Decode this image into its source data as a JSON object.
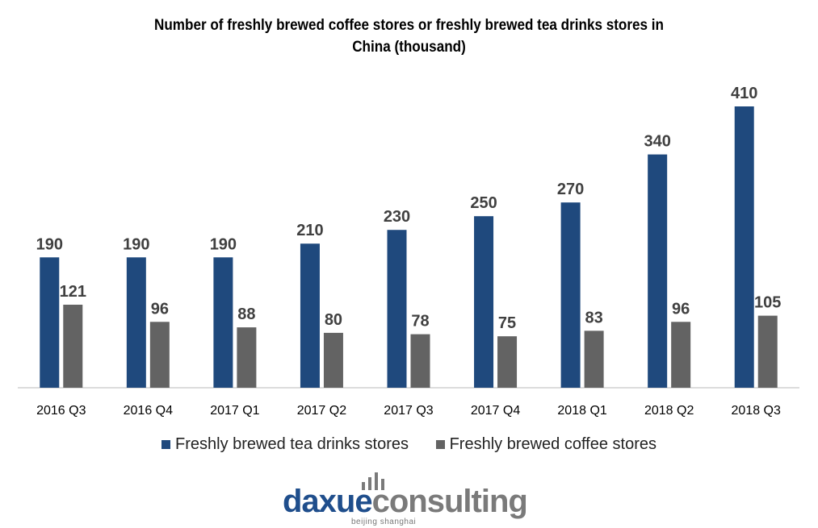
{
  "chart_data": {
    "type": "bar",
    "title_line1": "Number of freshly brewed coffee stores or freshly brewed tea drinks stores in",
    "title_line2": "China (thousand)",
    "categories": [
      "2016 Q3",
      "2016 Q4",
      "2017 Q1",
      "2017 Q2",
      "2017 Q3",
      "2017 Q4",
      "2018 Q1",
      "2018 Q2",
      "2018 Q3"
    ],
    "series": [
      {
        "name": "Freshly brewed tea drinks stores",
        "color": "#1f497d",
        "values": [
          190,
          190,
          190,
          210,
          230,
          250,
          270,
          340,
          410
        ]
      },
      {
        "name": "Freshly brewed coffee stores",
        "color": "#636363",
        "values": [
          121,
          96,
          88,
          80,
          78,
          75,
          83,
          96,
          105
        ]
      }
    ],
    "ylim": [
      0,
      410
    ],
    "grid": false,
    "legend_position": "bottom"
  },
  "logo": {
    "text_part1": "daxue",
    "text_part2": "consulting",
    "subtitle": "beijing shanghai"
  }
}
